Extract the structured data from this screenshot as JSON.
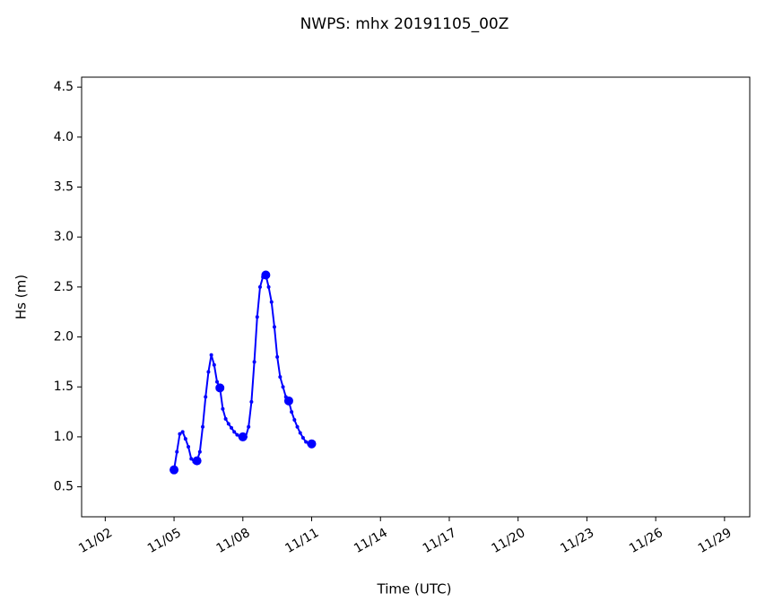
{
  "chart_data": {
    "type": "line",
    "title": "NWPS: mhx 20191105_00Z",
    "x_label": "Time (UTC)",
    "y_label": "Hs (m)",
    "color": "#0000ff",
    "x": [
      5.0,
      5.125,
      5.25,
      5.375,
      5.5,
      5.625,
      5.75,
      5.875,
      6.0,
      6.125,
      6.25,
      6.375,
      6.5,
      6.625,
      6.75,
      6.875,
      7.0,
      7.125,
      7.25,
      7.375,
      7.5,
      7.625,
      7.75,
      7.875,
      8.0,
      8.125,
      8.25,
      8.375,
      8.5,
      8.625,
      8.75,
      8.875,
      9.0,
      9.125,
      9.25,
      9.375,
      9.5,
      9.625,
      9.75,
      9.875,
      10.0,
      10.125,
      10.25,
      10.375,
      10.5,
      10.625,
      10.75,
      10.875,
      11.0
    ],
    "values": [
      0.67,
      0.85,
      1.03,
      1.05,
      0.98,
      0.9,
      0.78,
      0.75,
      0.76,
      0.85,
      1.1,
      1.4,
      1.65,
      1.82,
      1.72,
      1.55,
      1.49,
      1.28,
      1.18,
      1.13,
      1.09,
      1.05,
      1.02,
      1.0,
      1.0,
      1.0,
      1.1,
      1.35,
      1.75,
      2.2,
      2.5,
      2.6,
      2.62,
      2.5,
      2.35,
      2.1,
      1.8,
      1.6,
      1.5,
      1.4,
      1.36,
      1.25,
      1.17,
      1.1,
      1.04,
      0.99,
      0.95,
      0.93,
      0.93
    ],
    "xlim": [
      0.97,
      30.1
    ],
    "xticks": [
      {
        "value": 2,
        "label": "11/02"
      },
      {
        "value": 5,
        "label": "11/05"
      },
      {
        "value": 8,
        "label": "11/08"
      },
      {
        "value": 11,
        "label": "11/11"
      },
      {
        "value": 14,
        "label": "11/14"
      },
      {
        "value": 17,
        "label": "11/17"
      },
      {
        "value": 20,
        "label": "11/20"
      },
      {
        "value": 23,
        "label": "11/23"
      },
      {
        "value": 26,
        "label": "11/26"
      },
      {
        "value": 29,
        "label": "11/29"
      }
    ],
    "ylim": [
      0.2,
      4.6
    ],
    "yticks": [
      0.5,
      {
        "value": 1,
        "label": "1.0"
      },
      1.5,
      {
        "value": 2,
        "label": "2.0"
      },
      2.5,
      {
        "value": 3,
        "label": "3.0"
      },
      3.5,
      {
        "value": 4,
        "label": "4.0"
      },
      4.5
    ]
  }
}
